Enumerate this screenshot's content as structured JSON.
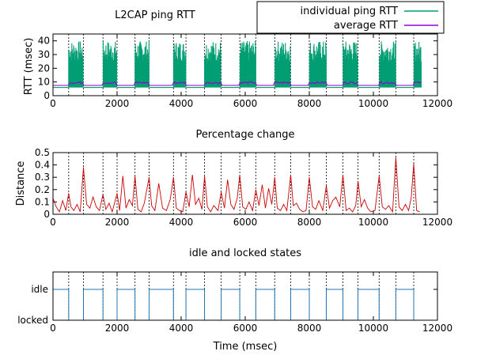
{
  "chart_data": [
    {
      "type": "line",
      "title": "L2CAP ping RTT",
      "xlabel": "",
      "ylabel": "RTT (msec)",
      "xlim": [
        0,
        12000
      ],
      "ylim": [
        0,
        45
      ],
      "xticks": [
        0,
        2000,
        4000,
        6000,
        8000,
        10000,
        12000
      ],
      "yticks": [
        0,
        10,
        20,
        30,
        40
      ],
      "data_xmax": 11500,
      "legend_position": "top-right",
      "series": [
        {
          "name": "individual ping RTT",
          "color": "#009e73",
          "baseline": 6,
          "burst_peak": 40,
          "idle_value": 6
        },
        {
          "name": "average RTT",
          "color": "#9400d3",
          "burst_value": 9.5,
          "idle_value": 7.5
        }
      ],
      "idle_intervals": [
        [
          0,
          490
        ],
        [
          950,
          1560
        ],
        [
          2000,
          2560
        ],
        [
          3000,
          3760
        ],
        [
          4150,
          4730
        ],
        [
          5250,
          5830
        ],
        [
          6330,
          6920
        ],
        [
          7420,
          8000
        ],
        [
          8530,
          9050
        ],
        [
          9520,
          10180
        ],
        [
          10700,
          11260
        ]
      ],
      "vlines": [
        490,
        950,
        1560,
        2000,
        2560,
        3000,
        3760,
        4150,
        4730,
        5250,
        5830,
        6330,
        6920,
        7420,
        8000,
        8530,
        9050,
        9520,
        10180,
        10700,
        11260
      ]
    },
    {
      "type": "line",
      "title": "Percentage change",
      "xlabel": "",
      "ylabel": "Distance",
      "xlim": [
        0,
        12000
      ],
      "ylim": [
        0,
        0.5
      ],
      "xticks": [
        0,
        2000,
        4000,
        6000,
        8000,
        10000,
        12000
      ],
      "yticks": [
        0,
        0.1,
        0.2,
        0.3,
        0.4,
        0.5
      ],
      "series": [
        {
          "color": "#cc0000",
          "x": [
            0,
            100,
            200,
            300,
            400,
            490,
            560,
            650,
            750,
            850,
            950,
            1050,
            1150,
            1250,
            1350,
            1450,
            1560,
            1650,
            1750,
            1850,
            2000,
            2080,
            2180,
            2280,
            2380,
            2480,
            2560,
            2650,
            2750,
            2850,
            3000,
            3080,
            3180,
            3300,
            3420,
            3540,
            3660,
            3760,
            3850,
            3950,
            4050,
            4150,
            4250,
            4350,
            4450,
            4550,
            4650,
            4730,
            4820,
            4920,
            5020,
            5150,
            5250,
            5350,
            5450,
            5550,
            5650,
            5750,
            5830,
            5920,
            6020,
            6120,
            6230,
            6330,
            6430,
            6530,
            6630,
            6730,
            6830,
            6920,
            7000,
            7100,
            7200,
            7300,
            7420,
            7500,
            7600,
            7700,
            7800,
            7900,
            8000,
            8100,
            8200,
            8300,
            8420,
            8530,
            8630,
            8730,
            8830,
            8950,
            9050,
            9150,
            9250,
            9350,
            9450,
            9520,
            9620,
            9720,
            9820,
            9920,
            10050,
            10180,
            10280,
            10380,
            10480,
            10600,
            10700,
            10800,
            10900,
            11000,
            11100,
            11180,
            11260,
            11350,
            11450
          ],
          "y": [
            0.13,
            0.06,
            0.02,
            0.11,
            0.03,
            0.17,
            0.06,
            0.03,
            0.08,
            0.02,
            0.38,
            0.08,
            0.05,
            0.14,
            0.06,
            0.03,
            0.16,
            0.04,
            0.09,
            0.02,
            0.17,
            0.03,
            0.31,
            0.05,
            0.12,
            0.07,
            0.31,
            0.04,
            0.02,
            0.09,
            0.3,
            0.07,
            0.03,
            0.25,
            0.05,
            0.03,
            0.12,
            0.3,
            0.05,
            0.03,
            0.02,
            0.18,
            0.06,
            0.32,
            0.08,
            0.13,
            0.04,
            0.31,
            0.06,
            0.02,
            0.07,
            0.03,
            0.18,
            0.05,
            0.28,
            0.08,
            0.04,
            0.13,
            0.32,
            0.06,
            0.04,
            0.1,
            0.03,
            0.2,
            0.07,
            0.24,
            0.05,
            0.21,
            0.08,
            0.3,
            0.05,
            0.03,
            0.08,
            0.03,
            0.32,
            0.07,
            0.09,
            0.04,
            0.02,
            0.03,
            0.3,
            0.06,
            0.04,
            0.11,
            0.03,
            0.23,
            0.05,
            0.11,
            0.14,
            0.06,
            0.32,
            0.03,
            0.05,
            0.02,
            0.07,
            0.27,
            0.06,
            0.12,
            0.05,
            0.02,
            0.03,
            0.31,
            0.06,
            0.04,
            0.07,
            0.02,
            0.46,
            0.06,
            0.03,
            0.08,
            0.03,
            0.13,
            0.41,
            0.03,
            0.02
          ]
        }
      ]
    },
    {
      "type": "line",
      "title": "idle and locked states",
      "xlabel": "Time (msec)",
      "ylabel": "",
      "xlim": [
        0,
        12000
      ],
      "xticks": [
        0,
        2000,
        4000,
        6000,
        8000,
        10000,
        12000
      ],
      "ycategories": [
        "locked",
        "idle"
      ],
      "series": [
        {
          "color": "#1f77b4",
          "state_step": "idle between each pair of dashed lines, locked otherwise"
        }
      ]
    }
  ]
}
